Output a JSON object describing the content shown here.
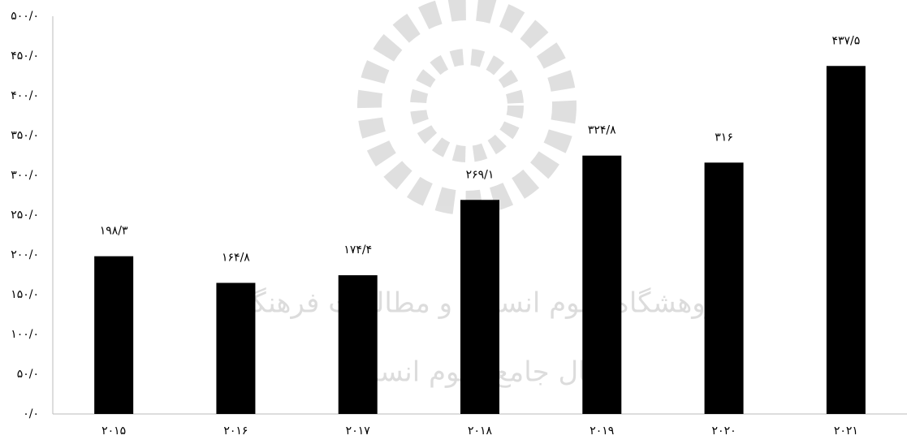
{
  "chart_data": {
    "type": "bar",
    "categories": [
      "۲۰۱۵",
      "۲۰۱۶",
      "۲۰۱۷",
      "۲۰۱۸",
      "۲۰۱۹",
      "۲۰۲۰",
      "۲۰۲۱"
    ],
    "values": [
      198.3,
      164.8,
      174.4,
      269.1,
      324.8,
      316,
      437.5
    ],
    "value_labels": [
      "۱۹۸/۳",
      "۱۶۴/۸",
      "۱۷۴/۴",
      "۲۶۹/۱",
      "۳۲۴/۸",
      "۳۱۶",
      "۴۳۷/۵"
    ],
    "color": "#000000",
    "ylim": [
      0,
      500
    ],
    "yticks": [
      {
        "value": 0,
        "label": "۰/۰"
      },
      {
        "value": 50,
        "label": "۵۰/۰"
      },
      {
        "value": 100,
        "label": "۱۰۰/۰"
      },
      {
        "value": 150,
        "label": "۱۵۰/۰"
      },
      {
        "value": 200,
        "label": "۲۰۰/۰"
      },
      {
        "value": 250,
        "label": "۲۵۰/۰"
      },
      {
        "value": 300,
        "label": "۳۰۰/۰"
      },
      {
        "value": 350,
        "label": "۳۵۰/۰"
      },
      {
        "value": 400,
        "label": "۴۰۰/۰"
      },
      {
        "value": 450,
        "label": "۴۵۰/۰"
      },
      {
        "value": 500,
        "label": "۵۰۰/۰"
      }
    ],
    "grid": false,
    "watermark": [
      "پژوهشگاه علوم انسانی و مطالعات فرهنگی",
      "پرتال جامع علوم انسانی"
    ]
  }
}
